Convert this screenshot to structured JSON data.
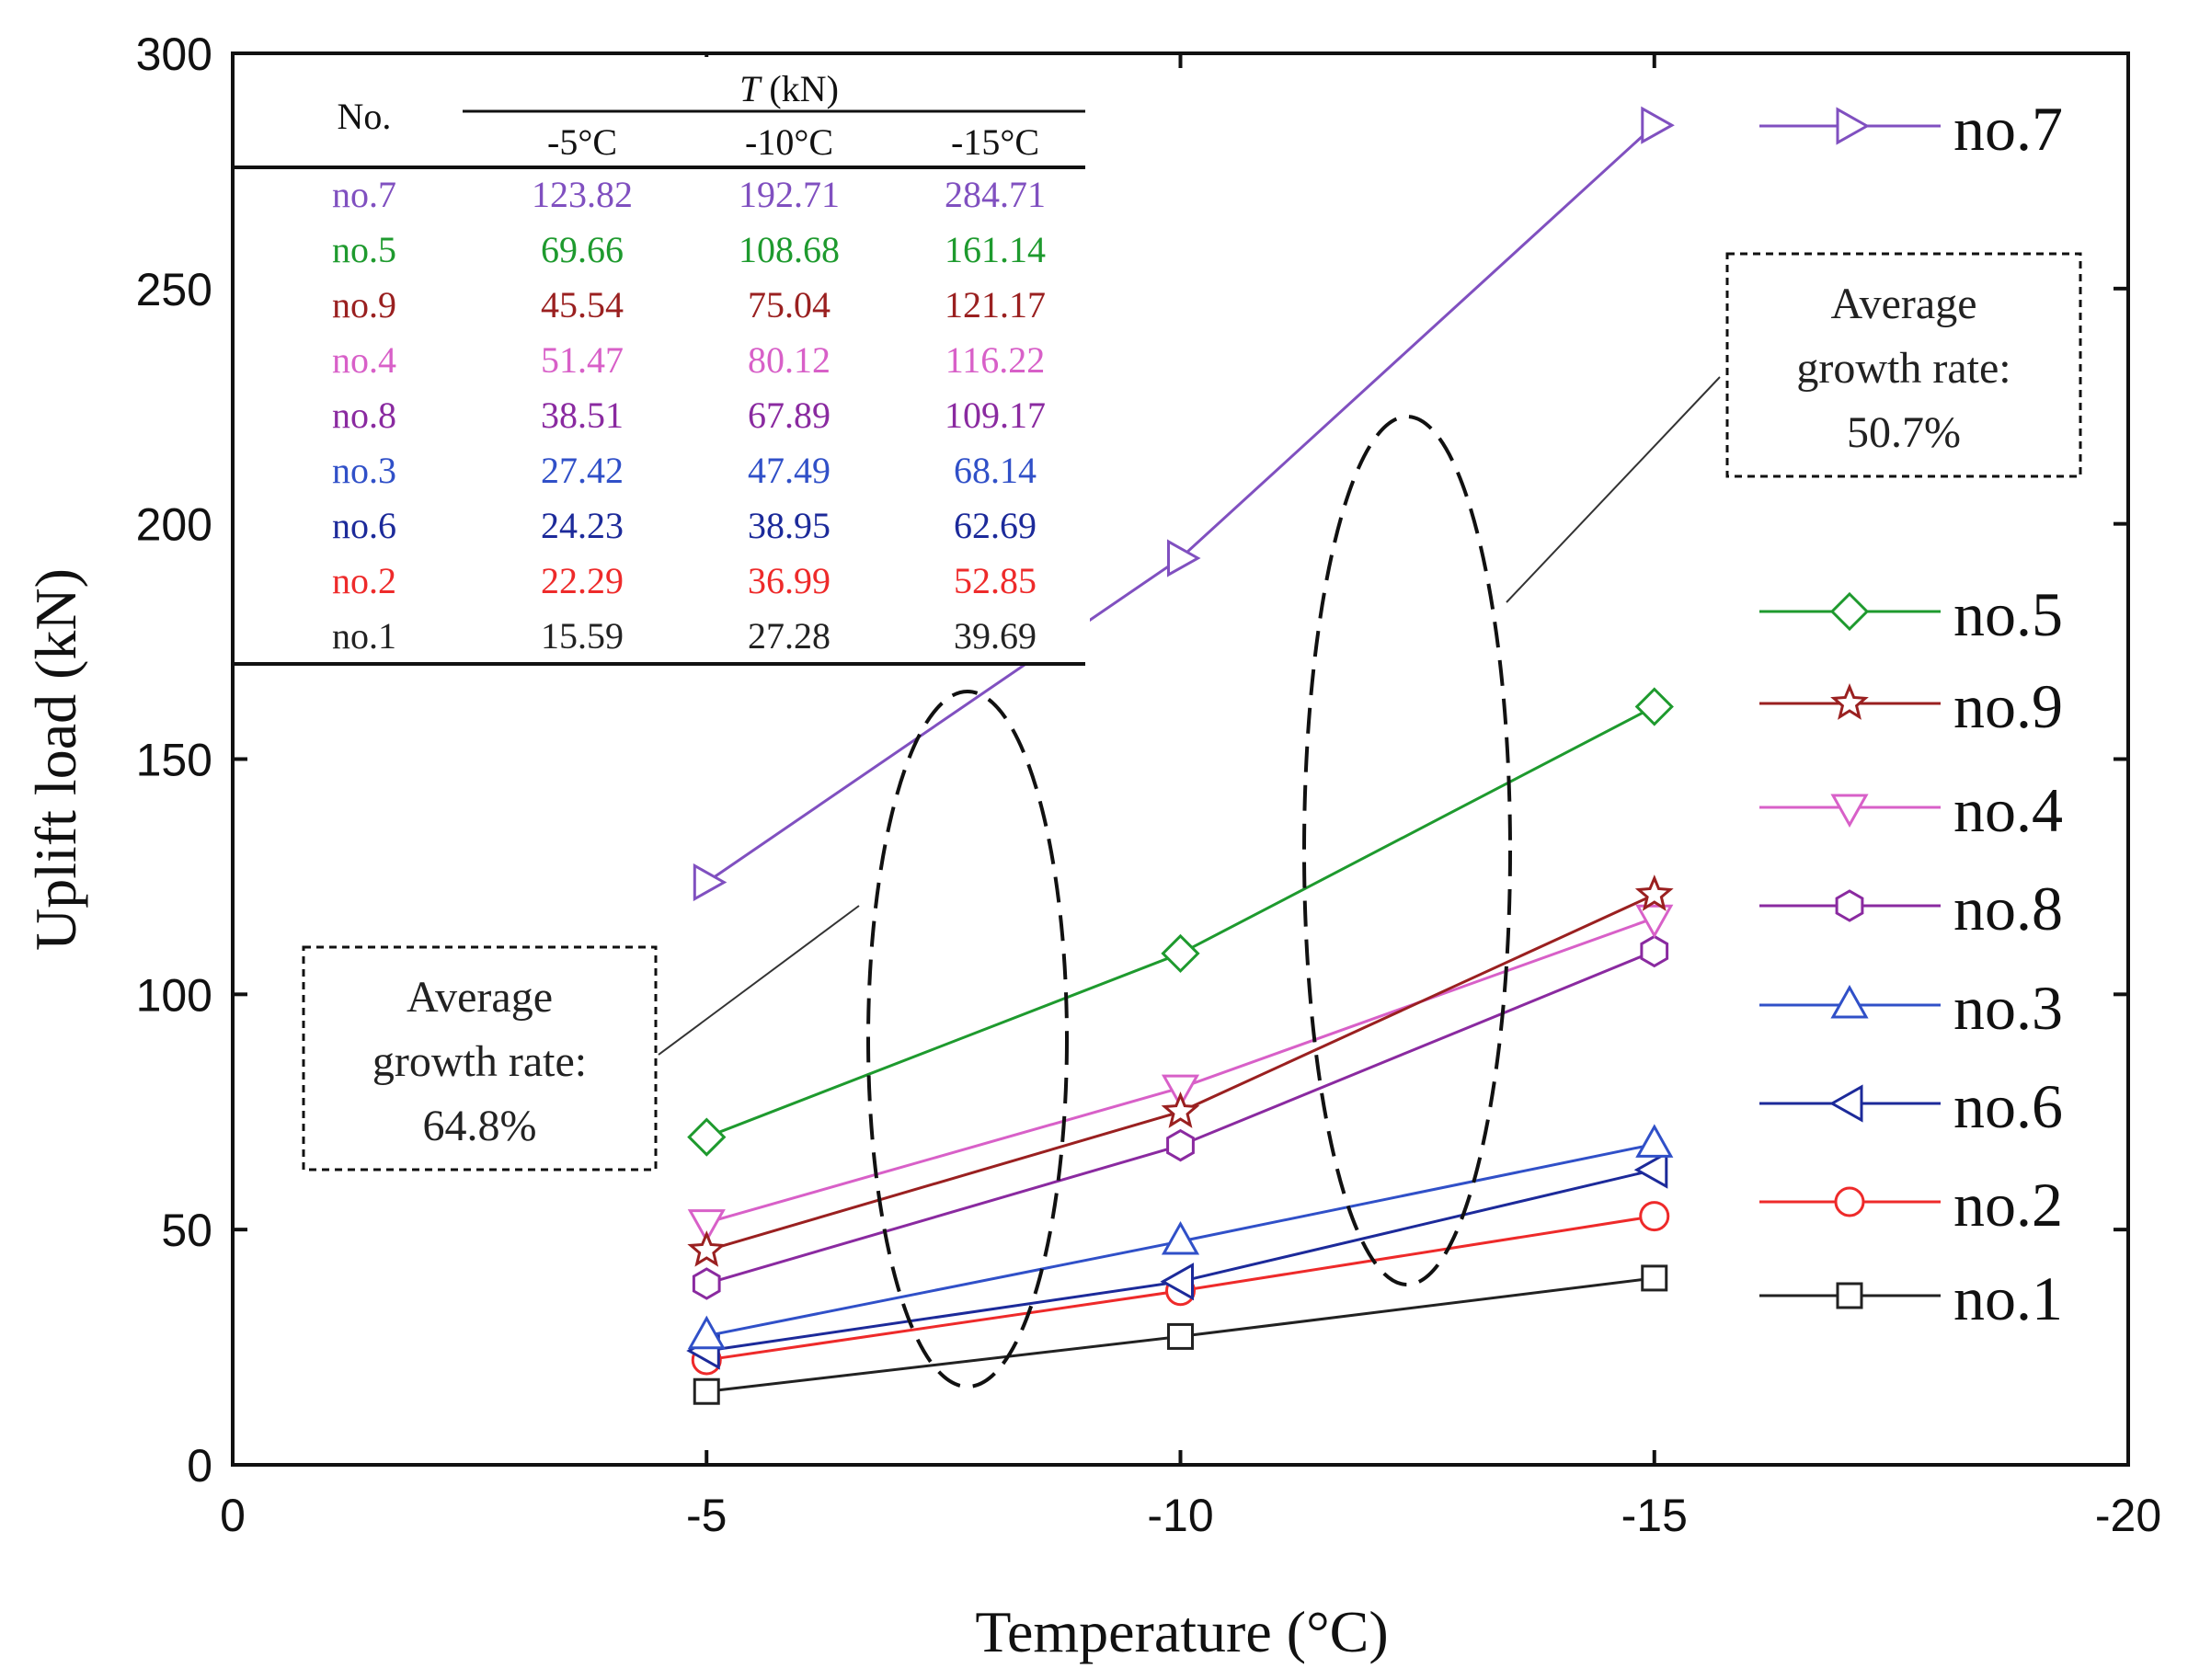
{
  "chart_data": {
    "type": "line",
    "xlabel": "Temperature (°C)",
    "ylabel": "Uplift load (kN)",
    "xlim": [
      0,
      -20
    ],
    "ylim": [
      0,
      300
    ],
    "x_ticks": [
      0,
      -5,
      -10,
      -15,
      -20
    ],
    "y_ticks": [
      0,
      50,
      100,
      150,
      200,
      250,
      300
    ],
    "x_tick_labels": [
      "0",
      "-5",
      "-10",
      "-15",
      "-20"
    ],
    "y_tick_labels": [
      "0",
      "50",
      "100",
      "150",
      "200",
      "250",
      "300"
    ],
    "x": [
      -5,
      -10,
      -15
    ],
    "series": [
      {
        "name": "no.7",
        "color": "#8050c0",
        "marker": "triangle-right",
        "values": [
          123.82,
          192.71,
          284.71
        ]
      },
      {
        "name": "no.5",
        "color": "#1e9a2e",
        "marker": "diamond",
        "values": [
          69.66,
          108.68,
          161.14
        ]
      },
      {
        "name": "no.9",
        "color": "#9a2020",
        "marker": "star",
        "values": [
          45.54,
          75.04,
          121.17
        ]
      },
      {
        "name": "no.4",
        "color": "#d860c8",
        "marker": "triangle-down",
        "values": [
          51.47,
          80.12,
          116.22
        ]
      },
      {
        "name": "no.8",
        "color": "#8a2aa0",
        "marker": "hexagon",
        "values": [
          38.51,
          67.89,
          109.17
        ]
      },
      {
        "name": "no.3",
        "color": "#3050c8",
        "marker": "triangle-up",
        "values": [
          27.42,
          47.49,
          68.14
        ]
      },
      {
        "name": "no.6",
        "color": "#1c2a9a",
        "marker": "triangle-left",
        "values": [
          24.23,
          38.95,
          62.69
        ]
      },
      {
        "name": "no.2",
        "color": "#ee2a2a",
        "marker": "circle",
        "values": [
          22.29,
          36.99,
          52.85
        ]
      },
      {
        "name": "no.1",
        "color": "#222222",
        "marker": "square",
        "values": [
          15.59,
          27.28,
          39.69
        ]
      }
    ],
    "table": {
      "header_no": "No.",
      "header_group_var": "T",
      "header_group_unit": " (kN)",
      "columns": [
        "-5°C",
        "-10°C",
        "-15°C"
      ],
      "rows": [
        {
          "label": "no.7",
          "color": "#8050c0",
          "values": [
            "123.82",
            "192.71",
            "284.71"
          ]
        },
        {
          "label": "no.5",
          "color": "#1e9a2e",
          "values": [
            "69.66",
            "108.68",
            "161.14"
          ]
        },
        {
          "label": "no.9",
          "color": "#9a2020",
          "values": [
            "45.54",
            "75.04",
            "121.17"
          ]
        },
        {
          "label": "no.4",
          "color": "#d860c8",
          "values": [
            "51.47",
            "80.12",
            "116.22"
          ]
        },
        {
          "label": "no.8",
          "color": "#8a2aa0",
          "values": [
            "38.51",
            "67.89",
            "109.17"
          ]
        },
        {
          "label": "no.3",
          "color": "#3050c8",
          "values": [
            "27.42",
            "47.49",
            "68.14"
          ]
        },
        {
          "label": "no.6",
          "color": "#1c2a9a",
          "values": [
            "24.23",
            "38.95",
            "62.69"
          ]
        },
        {
          "label": "no.2",
          "color": "#ee2a2a",
          "values": [
            "22.29",
            "36.99",
            "52.85"
          ]
        },
        {
          "label": "no.1",
          "color": "#222222",
          "values": [
            "15.59",
            "27.28",
            "39.69"
          ]
        }
      ]
    },
    "annotations": [
      {
        "lines": [
          "Average",
          "growth rate:",
          "50.7%"
        ]
      },
      {
        "lines": [
          "Average",
          "growth rate:",
          "64.8%"
        ]
      }
    ]
  }
}
